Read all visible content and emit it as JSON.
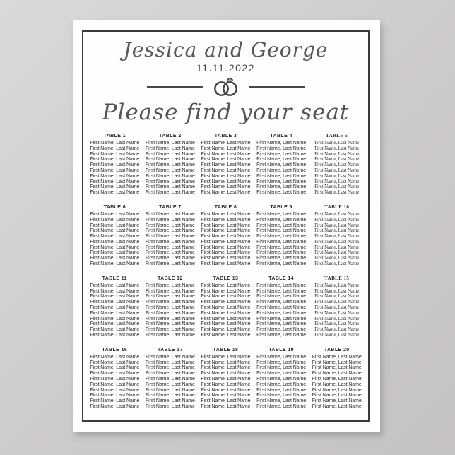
{
  "poster": {
    "couple_names": "Jessica and George",
    "wedding_date": "11.11.2022",
    "subtitle": "Please find your seat",
    "icons": {
      "rings_icon": "interlocked-wedding-rings-with-diamond"
    },
    "colors": {
      "poster_background": "#fefefe",
      "page_background": "#cdcaca",
      "frame_border": "#3a3a3d",
      "script_text": "#575757",
      "body_text": "#303030",
      "divider": "#494949"
    },
    "tables": [
      {
        "label": "TABLE 1",
        "font_variant": "sans",
        "guests": [
          "First Name, Last Name",
          "First Name, Last Name",
          "First Name, Last Name",
          "First Name, Last Name",
          "First Name, Last Name",
          "First Name, Last Name",
          "First Name, Last Name",
          "First Name, Last Name",
          "First Name, Last Name",
          "First Name, Last Name"
        ]
      },
      {
        "label": "TABLE 2",
        "font_variant": "sans",
        "guests": [
          "First Name, Last Name",
          "First Name, Last Name",
          "First Name, Last Name",
          "First Name, Last Name",
          "First Name, Last Name",
          "First Name, Last Name",
          "First Name, Last Name",
          "First Name, Last Name",
          "First Name, Last Name",
          "First Name, Last Name"
        ]
      },
      {
        "label": "TABLE 3",
        "font_variant": "sans",
        "guests": [
          "First Name, Last Name",
          "First Name, Last Name",
          "First Name, Last Name",
          "First Name, Last Name",
          "First Name, Last Name",
          "First Name, Last Name",
          "First Name, Last Name",
          "First Name, Last Name",
          "First Name, Last Name",
          "First Name, Last Name"
        ]
      },
      {
        "label": "TABLE 4",
        "font_variant": "sans",
        "guests": [
          "First Name, Last Name",
          "First Name, Last Name",
          "First Name, Last Name",
          "First Name, Last Name",
          "First Name, Last Name",
          "First Name, Last Name",
          "First Name, Last Name",
          "First Name, Last Name",
          "First Name, Last Name",
          "First Name, Last Name"
        ]
      },
      {
        "label": "TABLE 5",
        "font_variant": "serif",
        "guests": [
          "First Name, Last Name",
          "First Name, Last Name",
          "First Name, Last Name",
          "First Name, Last Name",
          "First Name, Last Name",
          "First Name, Last Name",
          "First Name, Last Name",
          "First Name, Last Name",
          "First Name, Last Name",
          "First Name, Last Name"
        ]
      },
      {
        "label": "TABLE 6",
        "font_variant": "sans",
        "guests": [
          "First Name, Last Name",
          "First Name, Last Name",
          "First Name, Last Name",
          "First Name, Last Name",
          "First Name, Last Name",
          "First Name, Last Name",
          "First Name, Last Name",
          "First Name, Last Name",
          "First Name, Last Name",
          "First Name, Last Name"
        ]
      },
      {
        "label": "TABLE 7",
        "font_variant": "sans",
        "guests": [
          "First Name, Last Name",
          "First Name, Last Name",
          "First Name, Last Name",
          "First Name, Last Name",
          "First Name, Last Name",
          "First Name, Last Name",
          "First Name, Last Name",
          "First Name, Last Name",
          "First Name, Last Name",
          "First Name, Last Name"
        ]
      },
      {
        "label": "TABLE 8",
        "font_variant": "sans",
        "guests": [
          "First Name, Last Name",
          "First Name, Last Name",
          "First Name, Last Name",
          "First Name, Last Name",
          "First Name, Last Name",
          "First Name, Last Name",
          "First Name, Last Name",
          "First Name, Last Name",
          "First Name, Last Name",
          "First Name, Last Name"
        ]
      },
      {
        "label": "TABLE 9",
        "font_variant": "sans",
        "guests": [
          "First Name, Last Name",
          "First Name, Last Name",
          "First Name, Last Name",
          "First Name, Last Name",
          "First Name, Last Name",
          "First Name, Last Name",
          "First Name, Last Name",
          "First Name, Last Name",
          "First Name, Last Name",
          "First Name, Last Name"
        ]
      },
      {
        "label": "TABLE 10",
        "font_variant": "serif",
        "guests": [
          "First Name, Last Name",
          "First Name, Last Name",
          "First Name, Last Name",
          "First Name, Last Name",
          "First Name, Last Name",
          "First Name, Last Name",
          "First Name, Last Name",
          "First Name, Last Name",
          "First Name, Last Name",
          "First Name, Last Name"
        ]
      },
      {
        "label": "TABLE 11",
        "font_variant": "sans",
        "guests": [
          "First Name, Last Name",
          "First Name, Last Name",
          "First Name, Last Name",
          "First Name, Last Name",
          "First Name, Last Name",
          "First Name, Last Name",
          "First Name, Last Name",
          "First Name, Last Name",
          "First Name, Last Name",
          "First Name, Last Name"
        ]
      },
      {
        "label": "TABLE 12",
        "font_variant": "sans",
        "guests": [
          "First Name, Last Name",
          "First Name, Last Name",
          "First Name, Last Name",
          "First Name, Last Name",
          "First Name, Last Name",
          "First Name, Last Name",
          "First Name, Last Name",
          "First Name, Last Name",
          "First Name, Last Name",
          "First Name, Last Name"
        ]
      },
      {
        "label": "TABLE 13",
        "font_variant": "sans",
        "guests": [
          "First Name, Last Name",
          "First Name, Last Name",
          "First Name, Last Name",
          "First Name, Last Name",
          "First Name, Last Name",
          "First Name, Last Name",
          "First Name, Last Name",
          "First Name, Last Name",
          "First Name, Last Name",
          "First Name, Last Name"
        ]
      },
      {
        "label": "TABLE 14",
        "font_variant": "sans",
        "guests": [
          "First Name, Last Name",
          "First Name, Last Name",
          "First Name, Last Name",
          "First Name, Last Name",
          "First Name, Last Name",
          "First Name, Last Name",
          "First Name, Last Name",
          "First Name, Last Name",
          "First Name, Last Name",
          "First Name, Last Name"
        ]
      },
      {
        "label": "TABLE 15",
        "font_variant": "serif",
        "guests": [
          "First Name, Last Name",
          "First Name, Last Name",
          "First Name, Last Name",
          "First Name, Last Name",
          "First Name, Last Name",
          "First Name, Last Name",
          "First Name, Last Name",
          "First Name, Last Name",
          "First Name, Last Name",
          "First Name, Last Name"
        ]
      },
      {
        "label": "TABLE 16",
        "font_variant": "sans",
        "guests": [
          "First Name, Last Name",
          "First Name, Last Name",
          "First Name, Last Name",
          "First Name, Last Name",
          "First Name, Last Name",
          "First Name, Last Name",
          "First Name, Last Name",
          "First Name, Last Name",
          "First Name, Last Name",
          "First Name, Last Name"
        ]
      },
      {
        "label": "TABLE 17",
        "font_variant": "sans",
        "guests": [
          "First Name, Last Name",
          "First Name, Last Name",
          "First Name, Last Name",
          "First Name, Last Name",
          "First Name, Last Name",
          "First Name, Last Name",
          "First Name, Last Name",
          "First Name, Last Name",
          "First Name, Last Name",
          "First Name, Last Name"
        ]
      },
      {
        "label": "TABLE 18",
        "font_variant": "sans",
        "guests": [
          "First Name, Last Name",
          "First Name, Last Name",
          "First Name, Last Name",
          "First Name, Last Name",
          "First Name, Last Name",
          "First Name, Last Name",
          "First Name, Last Name",
          "First Name, Last Name",
          "First Name, Last Name",
          "First Name, Last Name"
        ]
      },
      {
        "label": "TABLE 19",
        "font_variant": "sans",
        "guests": [
          "First Name, Last Name",
          "First Name, Last Name",
          "First Name, Last Name",
          "First Name, Last Name",
          "First Name, Last Name",
          "First Name, Last Name",
          "First Name, Last Name",
          "First Name, Last Name",
          "First Name, Last Name",
          "First Name, Last Name"
        ]
      },
      {
        "label": "TABLE 20",
        "font_variant": "sans",
        "guests": [
          "First Name, Last Name",
          "First Name, Last Name",
          "First Name, Last Name",
          "First Name, Last Name",
          "First Name, Last Name",
          "First Name, Last Name",
          "First Name, Last Name",
          "First Name, Last Name",
          "First Name, Last Name",
          "First Name, Last Name"
        ]
      }
    ]
  }
}
